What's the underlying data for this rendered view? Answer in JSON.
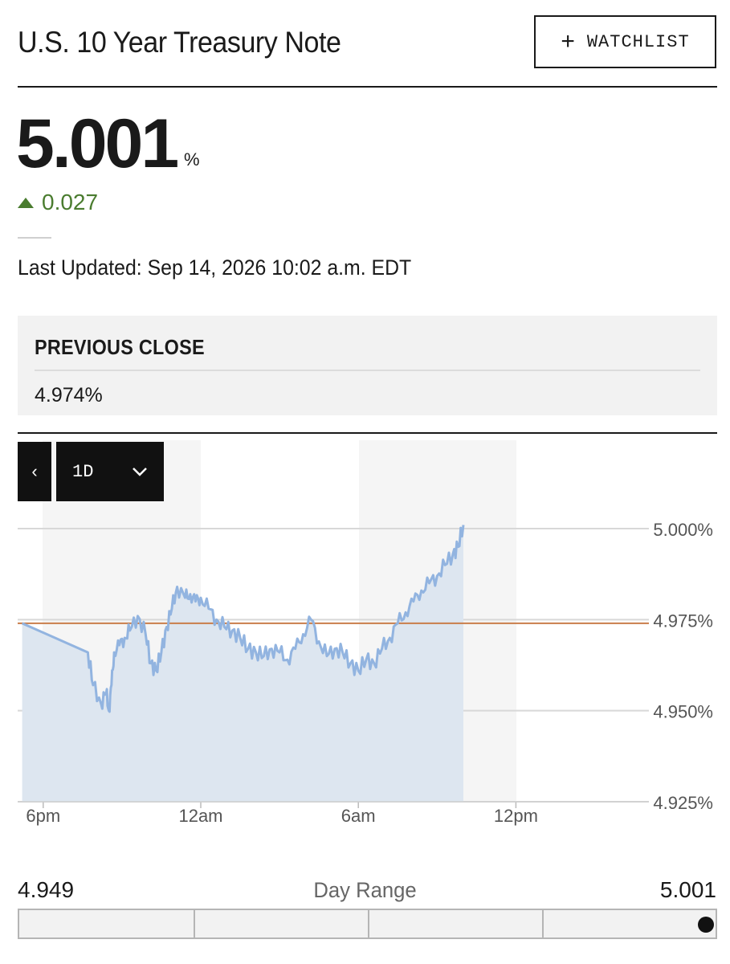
{
  "header": {
    "title": "U.S. 10 Year Treasury Note",
    "watchlist_label": "WATCHLIST",
    "watchlist_icon": "plus-icon"
  },
  "quote": {
    "price": "5.001",
    "unit": "%",
    "change": "0.027",
    "change_direction": "up",
    "change_color": "#4a7c2f",
    "last_updated": "Last Updated: Sep 14, 2026 10:02 a.m. EDT"
  },
  "previous_close": {
    "label": "PREVIOUS CLOSE",
    "value": "4.974%"
  },
  "chart_controls": {
    "prev_icon": "chevron-left-icon",
    "range_label": "1D",
    "range_icon": "chevron-down-icon"
  },
  "chart_data": {
    "type": "area",
    "x_ticks": [
      "6pm",
      "12am",
      "6am",
      "12pm"
    ],
    "y_ticks": [
      "5.000%",
      "4.975%",
      "4.950%",
      "4.925%"
    ],
    "ylim": [
      4.925,
      5.0
    ],
    "grid": true,
    "line_color": "#92b4e0",
    "fill_color": "#dde6f0",
    "reference_line": {
      "label": "Previous close",
      "value": 4.974,
      "color": "#c97d4a"
    },
    "series": [
      {
        "x_hours": [
          -6.8,
          -4.3,
          -4.1,
          -3.8,
          -3.6,
          -3.5,
          -3.4,
          -3.3,
          -3.1,
          -2.9,
          -2.7,
          -2.4,
          -2.1,
          -1.9,
          -1.7,
          -1.5,
          -1.3,
          -1.1,
          -0.9,
          -0.6,
          -0.4,
          -0.2,
          0.0,
          0.3,
          0.6,
          0.9,
          1.2,
          1.5,
          1.8,
          2.1,
          2.4,
          2.7,
          3.0,
          3.3,
          3.6,
          3.9,
          4.2,
          4.5,
          4.8,
          5.1,
          5.4,
          5.7,
          6.0,
          6.3,
          6.6,
          6.9,
          7.2,
          7.5,
          7.8,
          8.1,
          8.4,
          8.7,
          9.0,
          9.3,
          9.6,
          9.8,
          10.0
        ],
        "values": [
          4.974,
          4.966,
          4.957,
          4.952,
          4.955,
          4.95,
          4.957,
          4.966,
          4.968,
          4.97,
          4.972,
          4.976,
          4.971,
          4.963,
          4.961,
          4.966,
          4.973,
          4.978,
          4.984,
          4.981,
          4.982,
          4.98,
          4.981,
          4.978,
          4.975,
          4.973,
          4.972,
          4.97,
          4.967,
          4.966,
          4.965,
          4.967,
          4.966,
          4.964,
          4.967,
          4.971,
          4.975,
          4.969,
          4.965,
          4.967,
          4.966,
          4.963,
          4.961,
          4.964,
          4.963,
          4.967,
          4.97,
          4.974,
          4.977,
          4.98,
          4.983,
          4.985,
          4.987,
          4.99,
          4.993,
          4.995,
          5.001
        ]
      }
    ]
  },
  "day_range": {
    "label": "Day Range",
    "low": "4.949",
    "high": "5.001",
    "current_position": 1.0
  }
}
